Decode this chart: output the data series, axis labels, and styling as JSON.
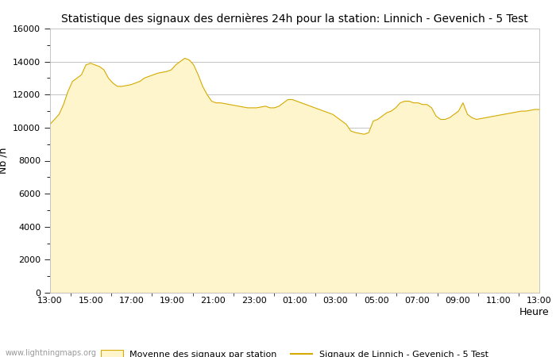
{
  "title": "Statistique des signaux des dernières 24h pour la station: Linnich - Gevenich - 5 Test",
  "xlabel": "Heure",
  "ylabel": "Nb /h",
  "ylim": [
    0,
    16000
  ],
  "yticks": [
    0,
    2000,
    4000,
    6000,
    8000,
    10000,
    12000,
    14000,
    16000
  ],
  "x_labels": [
    "13:00",
    "15:00",
    "17:00",
    "19:00",
    "21:00",
    "23:00",
    "01:00",
    "03:00",
    "05:00",
    "07:00",
    "09:00",
    "11:00",
    "13:00"
  ],
  "fill_color": "#FFF5CC",
  "fill_edge_color": "#D4AA00",
  "line_color": "#D4AA00",
  "background_color": "#FFFFFF",
  "plot_bg_color": "#FFFFFF",
  "grid_color": "#BBBBBB",
  "watermark": "www.lightningmaps.org",
  "legend_fill_label": "Moyenne des signaux par station",
  "legend_line_label": "Signaux de Linnich - Gevenich - 5 Test",
  "title_fontsize": 10,
  "axis_fontsize": 9,
  "tick_fontsize": 8,
  "y_data": [
    10200,
    10500,
    10800,
    11400,
    12200,
    12800,
    13000,
    13200,
    13800,
    13900,
    13800,
    13700,
    13500,
    13000,
    12700,
    12500,
    12500,
    12550,
    12600,
    12700,
    12800,
    13000,
    13100,
    13200,
    13300,
    13350,
    13400,
    13500,
    13800,
    14000,
    14200,
    14100,
    13800,
    13200,
    12500,
    12000,
    11600,
    11500,
    11500,
    11450,
    11400,
    11350,
    11300,
    11250,
    11200,
    11200,
    11200,
    11250,
    11300,
    11200,
    11200,
    11300,
    11500,
    11700,
    11700,
    11600,
    11500,
    11400,
    11300,
    11200,
    11100,
    11000,
    10900,
    10800,
    10600,
    10400,
    10200,
    9800,
    9700,
    9650,
    9600,
    9700,
    10400,
    10500,
    10700,
    10900,
    11000,
    11200,
    11500,
    11600,
    11600,
    11500,
    11500,
    11400,
    11400,
    11200,
    10700,
    10500,
    10500,
    10600,
    10800,
    11000,
    11500,
    10800,
    10600,
    10500,
    10550,
    10600,
    10650,
    10700,
    10750,
    10800,
    10850,
    10900,
    10950,
    11000,
    11000,
    11050,
    11100,
    11100
  ]
}
